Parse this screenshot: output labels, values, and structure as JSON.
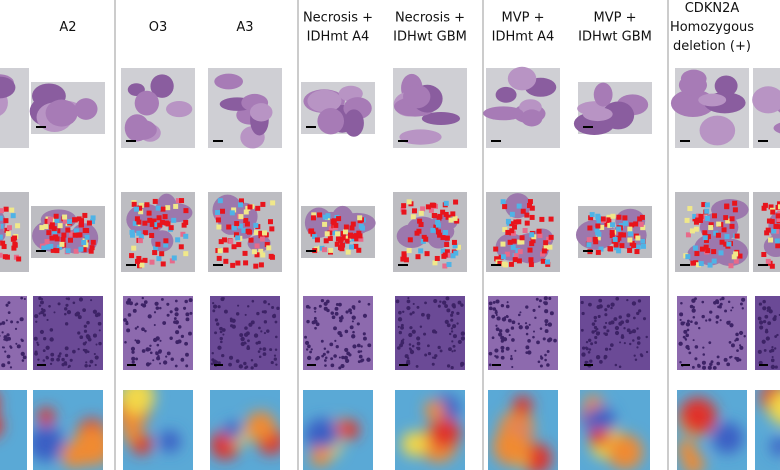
{
  "columns": [
    {
      "lines": [
        "A2"
      ]
    },
    {
      "lines": [
        "O3"
      ]
    },
    {
      "lines": [
        "A3"
      ]
    },
    {
      "lines": [
        "Necrosis +",
        "IDHmt A4"
      ]
    },
    {
      "lines": [
        "Necrosis +",
        "IDHwt GBM"
      ]
    },
    {
      "lines": [
        "MVP +",
        "IDHmt A4"
      ]
    },
    {
      "lines": [
        "MVP +",
        "IDHwt GBM"
      ]
    },
    {
      "lines": [
        "CDKN2A",
        "Homozygous",
        "deletion (+)"
      ]
    }
  ]
}
